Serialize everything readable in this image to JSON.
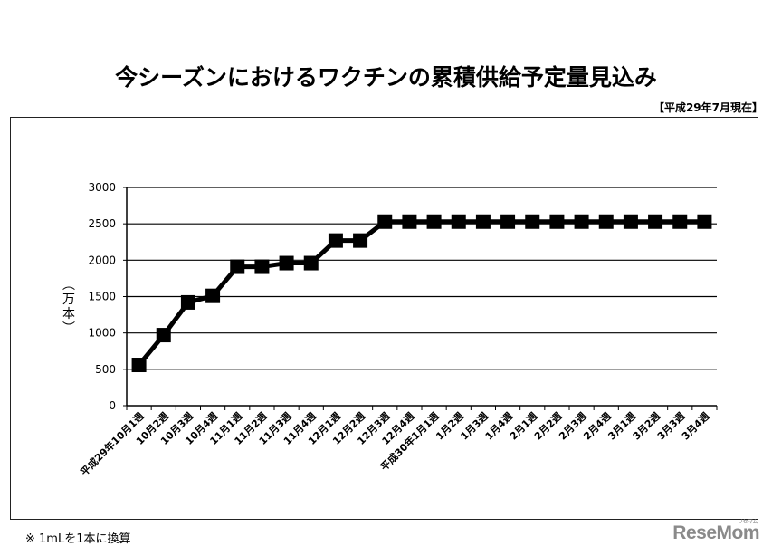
{
  "title": "今シーズンにおけるワクチンの累積供給予定量見込み",
  "as_of": "【平成29年7月現在】",
  "footnote": "※ 1mLを1本に換算",
  "logo": {
    "text": "ReseMom",
    "kana": "リセマム"
  },
  "colors": {
    "line": "#000000",
    "grid": "#000000",
    "logo": "#8a8a8a"
  },
  "chart_data": {
    "type": "line",
    "title": "今シーズンにおけるワクチンの累積供給予定量見込み",
    "xlabel": "",
    "ylabel": "（万本）",
    "ylim": [
      0,
      3000
    ],
    "yticks": [
      0,
      500,
      1000,
      1500,
      2000,
      2500,
      3000
    ],
    "grid": true,
    "legend": "none",
    "marker": "square",
    "categories": [
      "平成29年10月1週",
      "10月2週",
      "10月3週",
      "10月4週",
      "11月1週",
      "11月2週",
      "11月3週",
      "11月4週",
      "12月1週",
      "12月2週",
      "12月3週",
      "12月4週",
      "平成30年1月1週",
      "1月2週",
      "1月3週",
      "1月4週",
      "2月1週",
      "2月2週",
      "2月3週",
      "2月4週",
      "3月1週",
      "3月2週",
      "3月3週",
      "3月4週"
    ],
    "series": [
      {
        "name": "累積供給予定量",
        "values": [
          560,
          970,
          1420,
          1510,
          1910,
          1910,
          1960,
          1960,
          2270,
          2270,
          2530,
          2530,
          2530,
          2530,
          2530,
          2530,
          2530,
          2530,
          2530,
          2530,
          2530,
          2530,
          2530,
          2530
        ]
      }
    ]
  }
}
